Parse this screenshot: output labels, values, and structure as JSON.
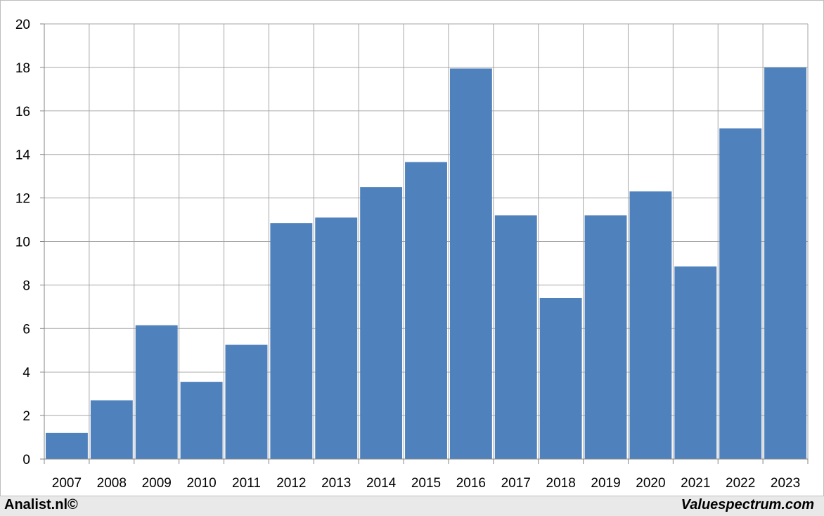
{
  "chart_data": {
    "type": "bar",
    "title": "",
    "xlabel": "",
    "ylabel": "",
    "categories": [
      "2007",
      "2008",
      "2009",
      "2010",
      "2011",
      "2012",
      "2013",
      "2014",
      "2015",
      "2016",
      "2017",
      "2018",
      "2019",
      "2020",
      "2021",
      "2022",
      "2023"
    ],
    "values": [
      1.2,
      2.7,
      6.15,
      3.55,
      5.25,
      10.85,
      11.1,
      12.5,
      13.65,
      17.95,
      11.2,
      7.4,
      11.2,
      12.3,
      8.85,
      15.2,
      18.0
    ],
    "ylim": [
      0,
      20
    ],
    "yticks": [
      "0",
      "2",
      "4",
      "6",
      "8",
      "10",
      "12",
      "14",
      "16",
      "18",
      "20"
    ],
    "grid": true,
    "bar_color": "#4f81bd",
    "grid_color": "#a6a6a6"
  },
  "footer": {
    "left": "Analist.nl©",
    "right": "Valuespectrum.com"
  }
}
